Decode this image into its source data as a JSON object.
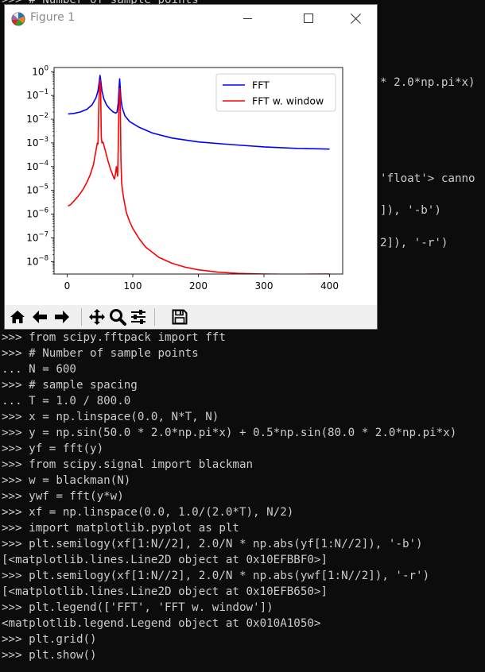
{
  "console": {
    "hidden_lines": [
      ">>> # Number of sample points",
      "* 2.0*np.pi*x)",
      "'float'> canno",
      "]), '-b')",
      "2]), '-r')"
    ],
    "lines": [
      ">>> from scipy.fftpack import fft",
      ">>> # Number of sample points",
      "... N = 600",
      ">>> # sample spacing",
      "... T = 1.0 / 800.0",
      ">>> x = np.linspace(0.0, N*T, N)",
      ">>> y = np.sin(50.0 * 2.0*np.pi*x) + 0.5*np.sin(80.0 * 2.0*np.pi*x)",
      ">>> yf = fft(y)",
      ">>> from scipy.signal import blackman",
      ">>> w = blackman(N)",
      ">>> ywf = fft(y*w)",
      ">>> xf = np.linspace(0.0, 1.0/(2.0*T), N/2)",
      ">>> import matplotlib.pyplot as plt",
      ">>> plt.semilogy(xf[1:N//2], 2.0/N * np.abs(yf[1:N//2]), '-b')",
      "[<matplotlib.lines.Line2D object at 0x10EFBBF0>]",
      ">>> plt.semilogy(xf[1:N//2], 2.0/N * np.abs(ywf[1:N//2]), '-r')",
      "[<matplotlib.lines.Line2D object at 0x10EFB650>]",
      ">>> plt.legend(['FFT', 'FFT w. window'])",
      "<matplotlib.legend.Legend object at 0x010A1050>",
      ">>> plt.grid()",
      ">>> plt.show()"
    ]
  },
  "figure_window": {
    "title": "Figure 1",
    "icon": "matplotlib-logo-icon",
    "controls": [
      "minimize-icon",
      "maximize-icon",
      "close-icon"
    ]
  },
  "toolbar": {
    "icons": [
      "home-icon",
      "back-arrow-icon",
      "forward-arrow-icon",
      "pan-move-icon",
      "zoom-magnifier-icon",
      "subplots-config-icon",
      "save-floppy-icon"
    ]
  },
  "chart_data": {
    "type": "line",
    "title": "",
    "xlabel": "",
    "ylabel": "",
    "yscale": "log",
    "xlim": [
      -20,
      420
    ],
    "ylim": [
      3e-09,
      1.5
    ],
    "grid": false,
    "legend_placement": "top-right",
    "xticks": [
      0,
      100,
      200,
      300,
      400
    ],
    "xtick_labels": [
      "0",
      "100",
      "200",
      "300",
      "400"
    ],
    "yticks": [
      1,
      0.1,
      0.01,
      0.001,
      0.0001,
      1e-05,
      1e-06,
      1e-07,
      1e-08
    ],
    "ytick_labels": [
      {
        "base": "10",
        "exp": "0"
      },
      {
        "base": "10",
        "exp": "−1"
      },
      {
        "base": "10",
        "exp": "−2"
      },
      {
        "base": "10",
        "exp": "−3"
      },
      {
        "base": "10",
        "exp": "−4"
      },
      {
        "base": "10",
        "exp": "−5"
      },
      {
        "base": "10",
        "exp": "−6"
      },
      {
        "base": "10",
        "exp": "−7"
      },
      {
        "base": "10",
        "exp": "−8"
      }
    ],
    "series": [
      {
        "name": "FFT",
        "color": "#0000ff",
        "x": [
          1.3,
          10,
          20,
          30,
          38,
          44,
          47,
          49,
          50,
          51,
          53,
          56,
          60,
          65,
          70,
          74,
          76,
          78,
          79,
          80,
          81,
          82,
          84,
          88,
          95,
          110,
          130,
          160,
          200,
          250,
          300,
          350,
          400
        ],
        "y": [
          0.0166,
          0.0175,
          0.02,
          0.026,
          0.04,
          0.08,
          0.16,
          0.4,
          0.7,
          0.45,
          0.16,
          0.07,
          0.04,
          0.027,
          0.02,
          0.018,
          0.02,
          0.05,
          0.2,
          0.5,
          0.2,
          0.07,
          0.03,
          0.014,
          0.008,
          0.0045,
          0.0026,
          0.0016,
          0.0011,
          0.00085,
          0.00068,
          0.00059,
          0.00055
        ]
      },
      {
        "name": "FFT w. window",
        "color": "#ff0000",
        "x": [
          1.3,
          5,
          10,
          15,
          20,
          25,
          30,
          35,
          40,
          44,
          46,
          47,
          48,
          49,
          50,
          51,
          52,
          53,
          54,
          55,
          58,
          62,
          66,
          70,
          72,
          73,
          74,
          75,
          76,
          77,
          78,
          79,
          80,
          81,
          82,
          83,
          84,
          86,
          90,
          95,
          100,
          110,
          120,
          140,
          160,
          180,
          200,
          230,
          260,
          300,
          340,
          370,
          400
        ],
        "y": [
          2.2e-06,
          2.5e-06,
          3.5e-06,
          5e-06,
          7.5e-06,
          1.2e-05,
          2.2e-05,
          4.5e-05,
          0.00012,
          0.0005,
          0.001,
          0.0009,
          0.02,
          0.18,
          0.45,
          0.18,
          0.0018,
          0.001,
          0.0011,
          0.001,
          0.0005,
          0.00018,
          8e-05,
          4e-05,
          3e-05,
          4e-05,
          6e-05,
          0.0001,
          6e-05,
          4e-05,
          0.001,
          0.05,
          0.2,
          0.05,
          0.0002,
          2e-05,
          1.2e-05,
          5e-06,
          1.2e-06,
          5e-07,
          2.5e-07,
          9e-08,
          4e-08,
          1.5e-08,
          8.5e-09,
          5.8e-09,
          4.5e-09,
          3.6e-09,
          3.2e-09,
          3e-09,
          2.9e-09,
          2.95e-09,
          3e-09
        ]
      }
    ]
  }
}
